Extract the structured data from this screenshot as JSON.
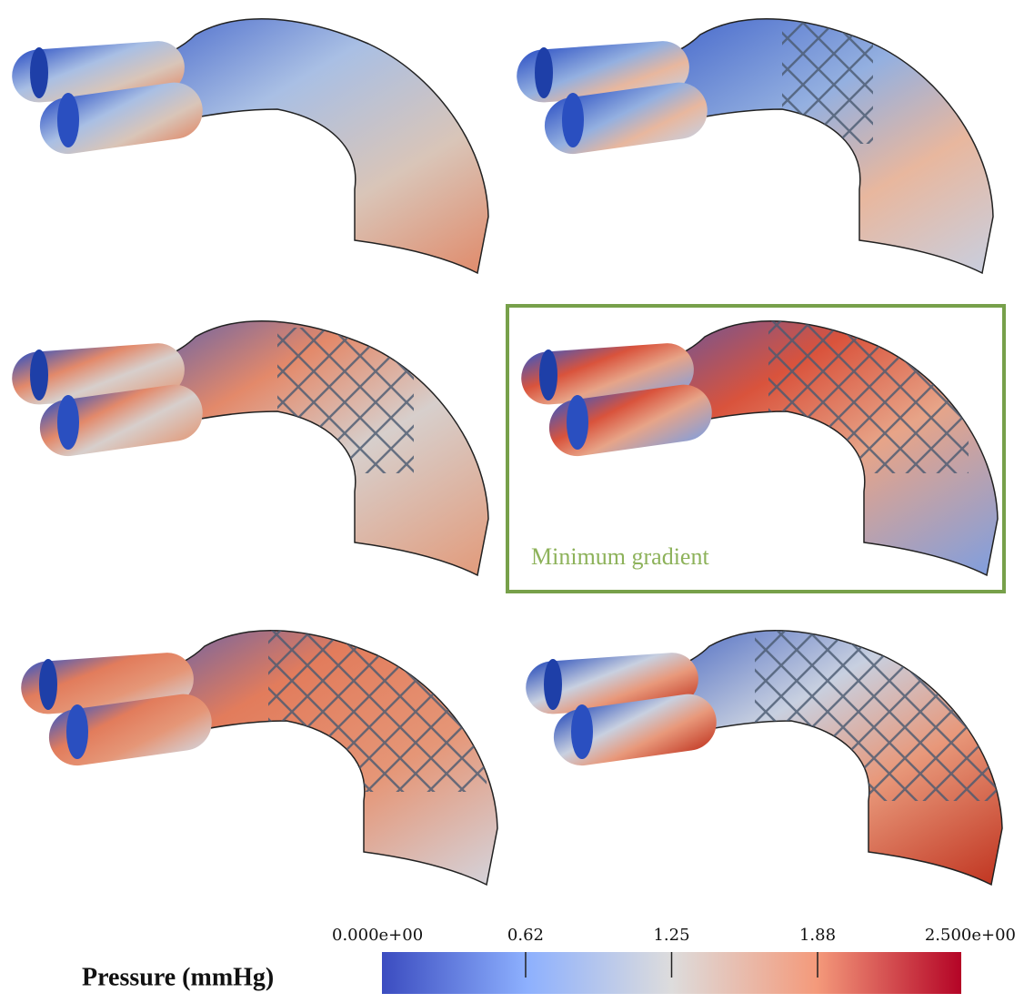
{
  "panels": {
    "highlight_label": "Minimum gradient"
  },
  "colorbar": {
    "label": "Pressure (mmHg)",
    "lim": [
      0,
      2.5
    ],
    "ticks": [
      {
        "value": 0,
        "label": "0.000e+00"
      },
      0.62,
      1.25,
      1.88,
      {
        "value": 2.5,
        "label": "2.500e+00"
      }
    ]
  }
}
